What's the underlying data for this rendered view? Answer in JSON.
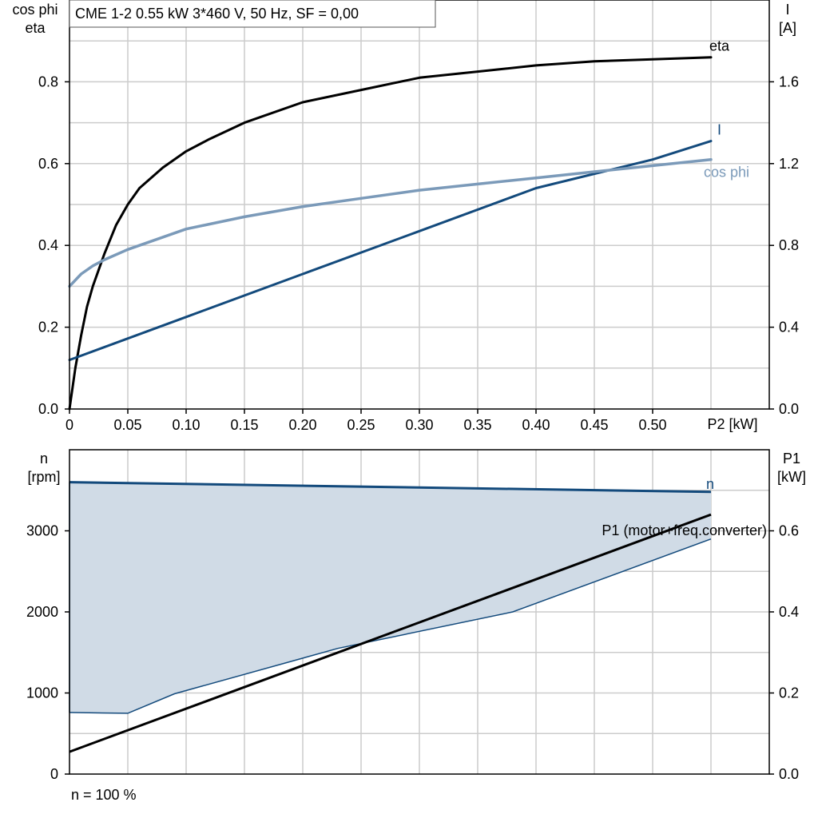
{
  "title": "CME 1-2   0.55 kW   3*460 V, 50 Hz, SF = 0,00",
  "footer_note": "n = 100 %",
  "colors": {
    "eta": "#000000",
    "current": "#134a7c",
    "cosphi": "#7b9ab9",
    "n": "#134a7c",
    "band_fill": "#d0dbe6",
    "p1": "#000000",
    "grid": "#cccccc"
  },
  "chart_data": [
    {
      "type": "line",
      "x_label": "P2 [kW]",
      "x_ticks": [
        "0",
        "0.05",
        "0.10",
        "0.15",
        "0.20",
        "0.25",
        "0.30",
        "0.35",
        "0.40",
        "0.45",
        "0.50"
      ],
      "xlim": [
        0,
        0.6
      ],
      "y_left_label_line1": "cos phi",
      "y_left_label_line2": "eta",
      "y_left_ticks": [
        "0.0",
        "0.2",
        "0.4",
        "0.6",
        "0.8"
      ],
      "ylim_left": [
        0,
        1.0
      ],
      "y_right_label_line1": "I",
      "y_right_label_line2": "[A]",
      "y_right_ticks": [
        "0.0",
        "0.4",
        "0.8",
        "1.2",
        "1.6"
      ],
      "ylim_right": [
        0,
        2.0
      ],
      "grid": true,
      "series": [
        {
          "name": "eta",
          "axis": "left",
          "x": [
            0,
            0.005,
            0.01,
            0.015,
            0.02,
            0.03,
            0.04,
            0.05,
            0.06,
            0.08,
            0.1,
            0.12,
            0.15,
            0.2,
            0.25,
            0.3,
            0.35,
            0.4,
            0.45,
            0.5,
            0.55
          ],
          "y": [
            0.0,
            0.1,
            0.18,
            0.25,
            0.3,
            0.38,
            0.45,
            0.5,
            0.54,
            0.59,
            0.63,
            0.66,
            0.7,
            0.75,
            0.78,
            0.81,
            0.825,
            0.84,
            0.85,
            0.855,
            0.86
          ]
        },
        {
          "name": "I",
          "axis": "right",
          "x": [
            0,
            0.1,
            0.2,
            0.3,
            0.4,
            0.5,
            0.55
          ],
          "y": [
            0.24,
            0.45,
            0.66,
            0.87,
            1.08,
            1.22,
            1.31
          ]
        },
        {
          "name": "cos phi",
          "axis": "left",
          "x": [
            0,
            0.01,
            0.02,
            0.03,
            0.05,
            0.1,
            0.15,
            0.2,
            0.25,
            0.3,
            0.35,
            0.4,
            0.45,
            0.5,
            0.55
          ],
          "y": [
            0.3,
            0.33,
            0.35,
            0.365,
            0.39,
            0.44,
            0.47,
            0.495,
            0.515,
            0.535,
            0.55,
            0.565,
            0.58,
            0.595,
            0.61
          ]
        }
      ]
    },
    {
      "type": "area",
      "x_label": "",
      "xlim": [
        0,
        0.6
      ],
      "y_left_label_line1": "n",
      "y_left_label_line2": "[rpm]",
      "y_left_ticks": [
        "0",
        "1000",
        "2000",
        "3000"
      ],
      "ylim_left": [
        0,
        4000
      ],
      "y_right_label_line1": "P1",
      "y_right_label_line2": "[kW]",
      "y_right_ticks": [
        "0.0",
        "0.2",
        "0.4",
        "0.6"
      ],
      "ylim_right": [
        0,
        0.8
      ],
      "grid": true,
      "series": [
        {
          "name": "n",
          "axis": "left",
          "x": [
            0,
            0.55
          ],
          "y": [
            3600,
            3480
          ]
        },
        {
          "name": "",
          "axis": "left",
          "role": "lower boundary",
          "x": [
            0,
            0.05,
            0.09,
            0.23,
            0.38,
            0.55
          ],
          "y": [
            760,
            750,
            990,
            1550,
            2000,
            2900
          ]
        },
        {
          "name": "P1 (motor+freq.converter)",
          "axis": "right",
          "x": [
            0,
            0.55
          ],
          "y": [
            0.055,
            0.64
          ]
        }
      ]
    }
  ]
}
